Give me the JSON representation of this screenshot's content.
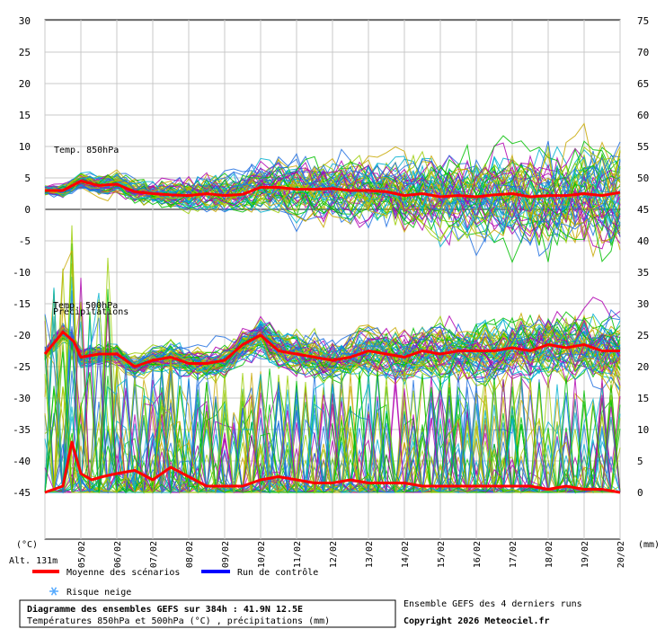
{
  "chart_data": {
    "type": "line",
    "title": "Diagramme des ensembles GEFS sur 384h : 41.9N 12.5E",
    "subtitle": "Températures 850hPa et 500hPa (°C) , précipitations (mm)",
    "left_axis_unit": "(°C)",
    "right_axis_unit": "(mm)",
    "altitude_label": "Alt. 131m",
    "left_axis": {
      "ylim": [
        -45,
        30
      ],
      "ticks": [
        "30",
        "25",
        "20",
        "15",
        "10",
        "5",
        "0",
        "-5",
        "-10",
        "-15",
        "-20",
        "-25",
        "-30",
        "-35",
        "-40",
        "-45"
      ]
    },
    "right_axis": {
      "ylim": [
        0,
        75
      ],
      "ticks": [
        "75",
        "70",
        "65",
        "60",
        "55",
        "50",
        "45",
        "40",
        "35",
        "30",
        "25",
        "20",
        "15",
        "10",
        "5",
        "0"
      ]
    },
    "x_categories": [
      "05/02",
      "06/02",
      "07/02",
      "08/02",
      "09/02",
      "10/02",
      "11/02",
      "12/02",
      "13/02",
      "14/02",
      "15/02",
      "16/02",
      "17/02",
      "18/02",
      "19/02",
      "20/02"
    ],
    "grid": true,
    "panel_labels": [
      "Temp. 850hPa",
      "Temp. 500hPa",
      "Précipitations"
    ],
    "series": [
      {
        "name": "Moyenne des scénarios",
        "color": "#ff0000",
        "panel": "t850",
        "x": [
          0,
          0.5,
          1,
          1.5,
          2,
          2.5,
          3,
          3.5,
          4,
          4.5,
          5,
          5.5,
          6,
          6.5,
          7,
          7.5,
          8,
          8.5,
          9,
          9.5,
          10,
          10.5,
          11,
          11.5,
          12,
          12.5,
          13,
          13.5,
          14,
          14.5,
          15,
          15.5,
          16
        ],
        "values": [
          3,
          3,
          4.5,
          3.8,
          4,
          2.8,
          2.5,
          2.3,
          2.2,
          2.5,
          2.2,
          2.4,
          3.5,
          3.5,
          3.2,
          3.2,
          3.3,
          3,
          3,
          2.8,
          2.2,
          2.5,
          2,
          2.2,
          2,
          2.3,
          2.5,
          2,
          2.2,
          2.2,
          2.5,
          2.2,
          2.7
        ]
      },
      {
        "name": "Moyenne des scénarios",
        "color": "#ff0000",
        "panel": "t500",
        "x": [
          0,
          0.5,
          0.8,
          1,
          1.5,
          2,
          2.5,
          3,
          3.5,
          4,
          4.5,
          5,
          5.5,
          6,
          6.5,
          7,
          7.5,
          8,
          8.5,
          9,
          9.5,
          10,
          10.5,
          11,
          11.5,
          12,
          12.5,
          13,
          13.5,
          14,
          14.5,
          15,
          15.5,
          16
        ],
        "values": [
          -23,
          -19.5,
          -21,
          -23.5,
          -23,
          -23,
          -25,
          -24,
          -23.5,
          -24.5,
          -24.5,
          -24,
          -21.5,
          -20,
          -22.5,
          -23,
          -23.5,
          -24,
          -23.5,
          -22.5,
          -23,
          -23.5,
          -22.5,
          -23,
          -22.5,
          -22.5,
          -22.5,
          -22,
          -22.5,
          -21.5,
          -22,
          -21.5,
          -22.5,
          -22.5
        ]
      },
      {
        "name": "Moyenne des scénarios",
        "color": "#ff0000",
        "panel": "precip",
        "x": [
          0,
          0.5,
          0.75,
          1,
          1.3,
          1.6,
          2,
          2.5,
          3,
          3.5,
          4,
          4.5,
          5,
          5.5,
          6,
          6.5,
          7,
          7.5,
          8,
          8.5,
          9,
          9.5,
          10,
          10.5,
          11,
          11.5,
          12,
          12.5,
          13,
          13.5,
          14,
          14.5,
          15,
          15.5,
          16
        ],
        "values": [
          0,
          1,
          8,
          3,
          2,
          2.5,
          3,
          3.5,
          2,
          4,
          2.5,
          1,
          1,
          1,
          2,
          2.5,
          2,
          1.5,
          1.5,
          2,
          1.5,
          1.5,
          1.5,
          1,
          1,
          1,
          1,
          1,
          1,
          1,
          0.5,
          1,
          0.5,
          0.5,
          0
        ]
      }
    ],
    "ensemble_colors": [
      "#00c000",
      "#9acd00",
      "#c8a800",
      "#b000b0",
      "#00b0d0",
      "#1e6fe0"
    ]
  },
  "legend": {
    "mean_label": "Moyenne des scénarios",
    "mean_color": "#ff0000",
    "control_label": "Run de contrôle",
    "control_color": "#0000ff",
    "snow_label": "Risque neige",
    "snow_color": "#55aaff",
    "snow_icon": "snowflake-icon"
  },
  "footer": {
    "title": "Diagramme des ensembles GEFS sur 384h : 41.9N 12.5E",
    "subtitle": "Températures 850hPa et 500hPa (°C) , précipitations (mm)",
    "ensemble_note": "Ensemble GEFS des 4 derniers runs",
    "copyright": "Copyright 2026 Meteociel.fr"
  }
}
